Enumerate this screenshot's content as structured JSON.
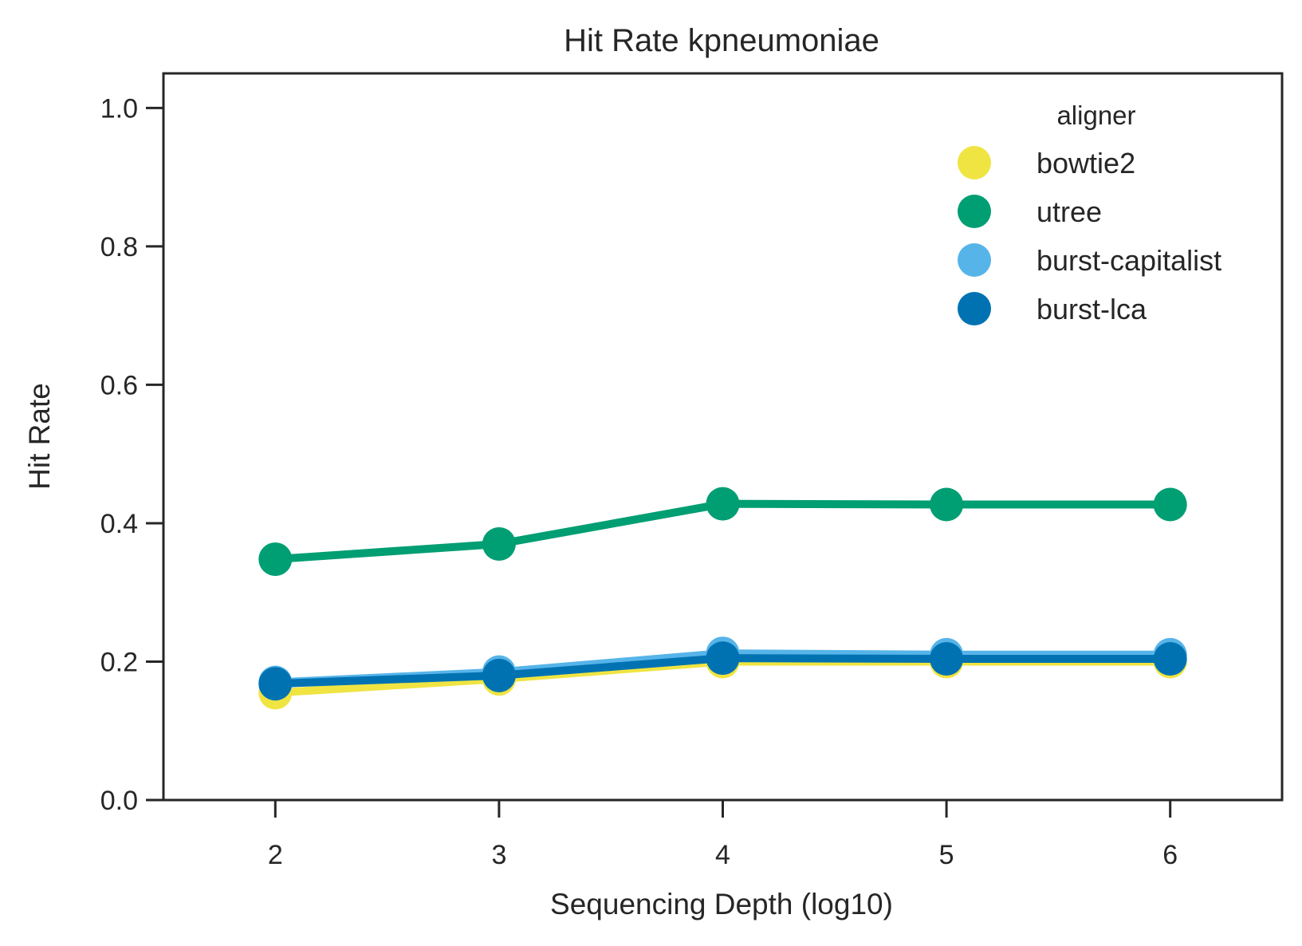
{
  "chart_data": {
    "type": "line",
    "title": "Hit Rate kpneumoniae",
    "xlabel": "Sequencing Depth (log10)",
    "ylabel": "Hit Rate",
    "categories": [
      "2",
      "3",
      "4",
      "5",
      "6"
    ],
    "x": [
      2,
      3,
      4,
      5,
      6
    ],
    "xlim": [
      1.5,
      6.5
    ],
    "ylim": [
      0,
      1.05
    ],
    "yticks": [
      "0.0",
      "0.2",
      "0.4",
      "0.6",
      "0.8",
      "1.0"
    ],
    "grid": false,
    "legend": {
      "title": "aligner",
      "placement": "top-right"
    },
    "series": [
      {
        "name": "bowtie2",
        "color": "#F0E442",
        "values": [
          0.155,
          0.175,
          0.2,
          0.2,
          0.2
        ]
      },
      {
        "name": "utree",
        "color": "#009E73",
        "values": [
          0.348,
          0.37,
          0.428,
          0.427,
          0.427
        ]
      },
      {
        "name": "burst-capitalist",
        "color": "#56B4E9",
        "values": [
          0.17,
          0.185,
          0.212,
          0.21,
          0.21
        ]
      },
      {
        "name": "burst-lca",
        "color": "#0072B2",
        "values": [
          0.168,
          0.18,
          0.205,
          0.204,
          0.204
        ]
      }
    ]
  }
}
